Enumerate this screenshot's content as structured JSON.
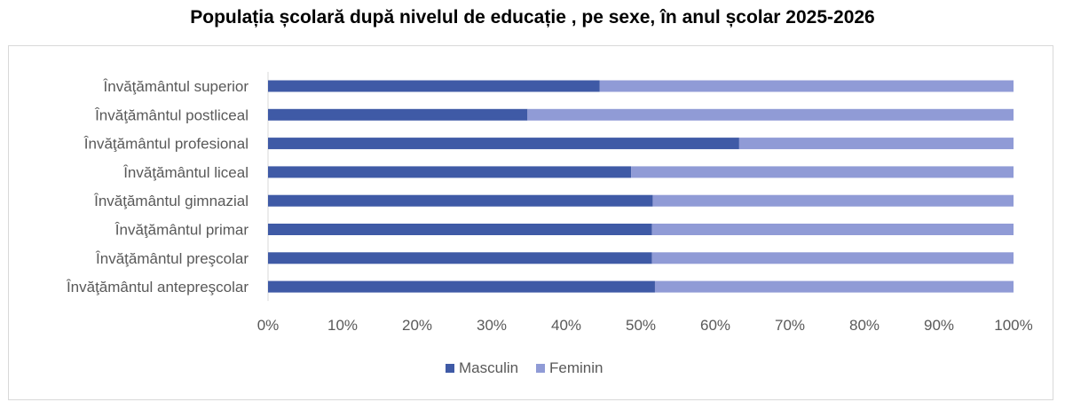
{
  "chart_data": {
    "type": "bar",
    "orientation": "horizontal",
    "stacked": "percent",
    "title": "Populația școlară după nivelul de educație , pe sexe, în anul școlar 2025-2026",
    "categories": [
      "Învăţământul superior",
      "Învăţământul postliceal",
      "Învăţământul profesional",
      "Învăţământul liceal",
      "Învăţământul gimnazial",
      "Învăţământul primar",
      "Învăţământul preşcolar",
      "Învăţământul antepreşcolar"
    ],
    "series": [
      {
        "name": "Masculin",
        "color": "#3f5aa6",
        "values": [
          44.5,
          34.8,
          63.2,
          48.7,
          51.6,
          51.5,
          51.5,
          51.9
        ]
      },
      {
        "name": "Feminin",
        "color": "#909bd6",
        "values": [
          55.5,
          65.2,
          36.8,
          51.3,
          48.4,
          48.5,
          48.5,
          48.1
        ]
      }
    ],
    "xlim": [
      0,
      100
    ],
    "xticks": [
      "0%",
      "10%",
      "20%",
      "30%",
      "40%",
      "50%",
      "60%",
      "70%",
      "80%",
      "90%",
      "100%"
    ],
    "legend_position": "bottom",
    "grid": false
  }
}
